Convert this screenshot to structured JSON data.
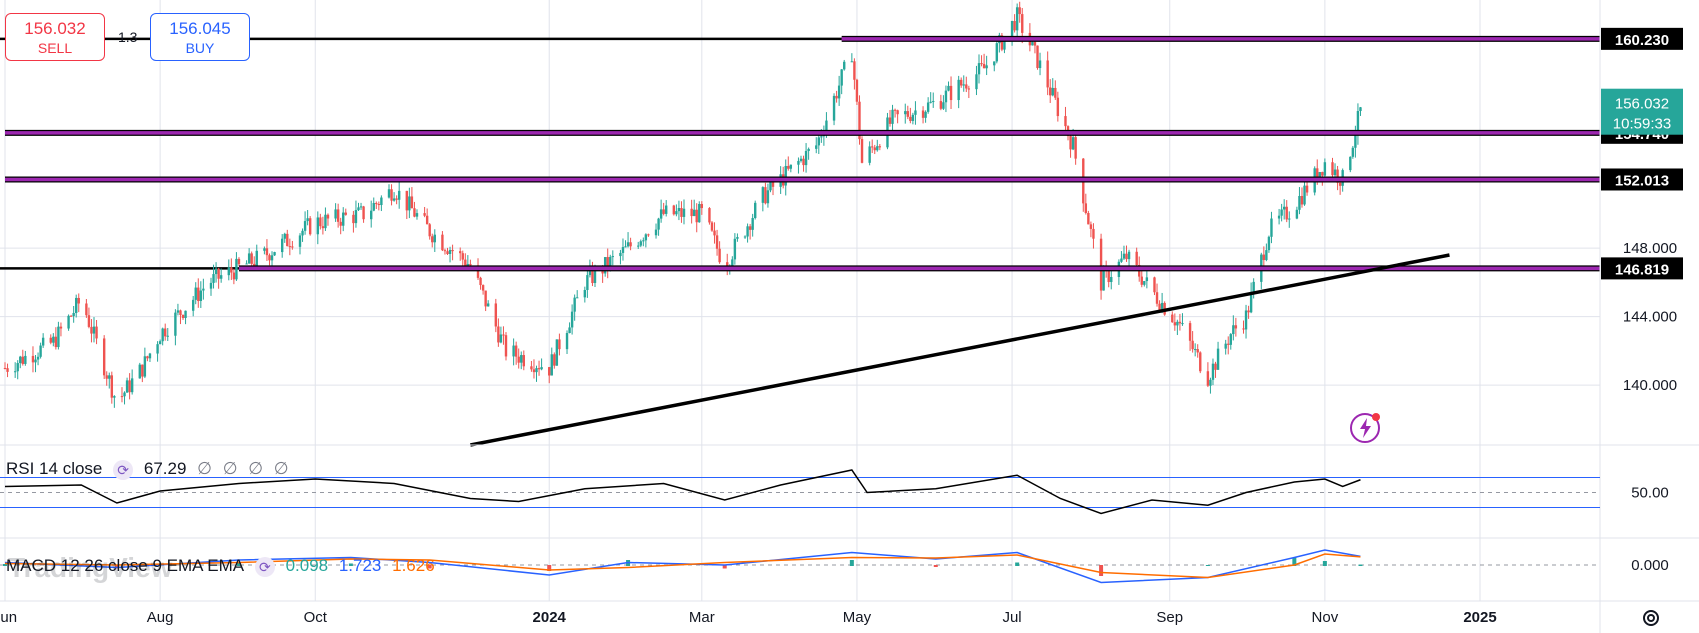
{
  "trade_panel": {
    "sell_price": "156.032",
    "sell_label": "SELL",
    "spread": "1.3",
    "buy_price": "156.045",
    "buy_label": "BUY"
  },
  "watermark": "TradingView",
  "chart_data": {
    "type": "candlestick",
    "x_tick_labels": [
      "Jun",
      "Aug",
      "Oct",
      "2024",
      "Mar",
      "May",
      "Jul",
      "Sep",
      "Nov",
      "2025"
    ],
    "y_tick_labels": [
      "140.000",
      "144.000",
      "148.000"
    ],
    "ylim": [
      136.5,
      162.5
    ],
    "grid": true,
    "price_series": [
      {
        "d": "2023-06-01",
        "c": 141.0
      },
      {
        "d": "2023-06-20",
        "c": 142.5
      },
      {
        "d": "2023-07-01",
        "c": 145.0
      },
      {
        "d": "2023-07-15",
        "c": 139.0
      },
      {
        "d": "2023-07-25",
        "c": 141.0
      },
      {
        "d": "2023-08-01",
        "c": 143.0
      },
      {
        "d": "2023-08-20",
        "c": 146.0
      },
      {
        "d": "2023-09-10",
        "c": 147.5
      },
      {
        "d": "2023-10-01",
        "c": 149.5
      },
      {
        "d": "2023-10-20",
        "c": 150.0
      },
      {
        "d": "2023-11-01",
        "c": 151.5
      },
      {
        "d": "2023-11-15",
        "c": 149.0
      },
      {
        "d": "2023-12-01",
        "c": 147.0
      },
      {
        "d": "2023-12-15",
        "c": 142.0
      },
      {
        "d": "2024-01-01",
        "c": 141.0
      },
      {
        "d": "2024-01-15",
        "c": 146.0
      },
      {
        "d": "2024-02-01",
        "c": 148.0
      },
      {
        "d": "2024-02-15",
        "c": 150.0
      },
      {
        "d": "2024-03-01",
        "c": 150.0
      },
      {
        "d": "2024-03-10",
        "c": 147.0
      },
      {
        "d": "2024-03-25",
        "c": 151.0
      },
      {
        "d": "2024-04-15",
        "c": 154.0
      },
      {
        "d": "2024-04-29",
        "c": 159.5
      },
      {
        "d": "2024-05-03",
        "c": 153.0
      },
      {
        "d": "2024-05-15",
        "c": 155.5
      },
      {
        "d": "2024-06-01",
        "c": 156.5
      },
      {
        "d": "2024-06-20",
        "c": 158.5
      },
      {
        "d": "2024-07-03",
        "c": 161.5
      },
      {
        "d": "2024-07-11",
        "c": 159.0
      },
      {
        "d": "2024-07-25",
        "c": 154.0
      },
      {
        "d": "2024-08-05",
        "c": 146.0
      },
      {
        "d": "2024-08-15",
        "c": 147.5
      },
      {
        "d": "2024-08-25",
        "c": 145.5
      },
      {
        "d": "2024-09-05",
        "c": 143.5
      },
      {
        "d": "2024-09-16",
        "c": 140.5
      },
      {
        "d": "2024-09-25",
        "c": 143.0
      },
      {
        "d": "2024-10-01",
        "c": 144.0
      },
      {
        "d": "2024-10-10",
        "c": 149.0
      },
      {
        "d": "2024-10-20",
        "c": 150.5
      },
      {
        "d": "2024-11-01",
        "c": 153.0
      },
      {
        "d": "2024-11-08",
        "c": 152.0
      },
      {
        "d": "2024-11-15",
        "c": 156.0
      }
    ],
    "horizontal_levels": [
      {
        "label": "160.230",
        "value": 160.23,
        "color": "#9c27b0"
      },
      {
        "label": "154.740",
        "value": 154.74,
        "color": "#9c27b0"
      },
      {
        "label": "152.013",
        "value": 152.013,
        "color": "#9c27b0"
      },
      {
        "label": "146.819",
        "value": 146.819,
        "color": "#9c27b0"
      }
    ],
    "trendline": {
      "start": {
        "d": "2023-12-01",
        "v": 136.5
      },
      "end": {
        "d": "2024-12-20",
        "v": 147.6
      }
    },
    "current_price": {
      "label": "156.032",
      "countdown": "10:59:33",
      "color": "#26a69a"
    },
    "rsi": {
      "legend_name": "RSI 14 close",
      "legend_value": "67.29",
      "legend_extras": [
        "∅",
        "∅",
        "∅",
        "∅"
      ],
      "tick_label": "50.00",
      "upper_band": 70,
      "lower_band": 30,
      "series": [
        {
          "d": "2023-06-01",
          "v": 58
        },
        {
          "d": "2023-07-01",
          "v": 60
        },
        {
          "d": "2023-07-15",
          "v": 36
        },
        {
          "d": "2023-08-01",
          "v": 52
        },
        {
          "d": "2023-09-01",
          "v": 62
        },
        {
          "d": "2023-10-01",
          "v": 68
        },
        {
          "d": "2023-11-01",
          "v": 62
        },
        {
          "d": "2023-12-01",
          "v": 42
        },
        {
          "d": "2023-12-20",
          "v": 38
        },
        {
          "d": "2024-01-15",
          "v": 55
        },
        {
          "d": "2024-02-15",
          "v": 62
        },
        {
          "d": "2024-03-10",
          "v": 40
        },
        {
          "d": "2024-04-01",
          "v": 60
        },
        {
          "d": "2024-04-29",
          "v": 80
        },
        {
          "d": "2024-05-05",
          "v": 50
        },
        {
          "d": "2024-06-01",
          "v": 55
        },
        {
          "d": "2024-07-03",
          "v": 73
        },
        {
          "d": "2024-07-20",
          "v": 42
        },
        {
          "d": "2024-08-05",
          "v": 22
        },
        {
          "d": "2024-08-25",
          "v": 40
        },
        {
          "d": "2024-09-16",
          "v": 33
        },
        {
          "d": "2024-10-01",
          "v": 50
        },
        {
          "d": "2024-10-20",
          "v": 64
        },
        {
          "d": "2024-11-01",
          "v": 68
        },
        {
          "d": "2024-11-08",
          "v": 58
        },
        {
          "d": "2024-11-15",
          "v": 67
        }
      ]
    },
    "macd": {
      "legend_name": "MACD 12 26 close 9 EMA EMA",
      "hist_value": "0.098",
      "macd_value": "1.723",
      "signal_value": "1.626",
      "hist_color": "#26a69a",
      "macd_color": "#2962ff",
      "signal_color": "#ff6d00",
      "tick_label": "0.000",
      "series": [
        {
          "d": "2023-06-01",
          "m": 0.5,
          "s": 0.3
        },
        {
          "d": "2023-07-15",
          "m": -0.5,
          "s": 0.0
        },
        {
          "d": "2023-09-01",
          "m": 1.0,
          "s": 0.5
        },
        {
          "d": "2023-10-15",
          "m": 1.5,
          "s": 1.2
        },
        {
          "d": "2023-11-15",
          "m": 0.5,
          "s": 1.0
        },
        {
          "d": "2024-01-01",
          "m": -2.0,
          "s": -1.0
        },
        {
          "d": "2024-02-01",
          "m": 0.5,
          "s": -0.5
        },
        {
          "d": "2024-03-10",
          "m": 0.0,
          "s": 0.5
        },
        {
          "d": "2024-04-29",
          "m": 2.5,
          "s": 1.5
        },
        {
          "d": "2024-06-01",
          "m": 1.2,
          "s": 1.4
        },
        {
          "d": "2024-07-03",
          "m": 2.5,
          "s": 2.0
        },
        {
          "d": "2024-08-05",
          "m": -3.5,
          "s": -1.5
        },
        {
          "d": "2024-09-16",
          "m": -2.5,
          "s": -2.5
        },
        {
          "d": "2024-10-20",
          "m": 1.5,
          "s": 0.0
        },
        {
          "d": "2024-11-01",
          "m": 3.0,
          "s": 2.2
        },
        {
          "d": "2024-11-15",
          "m": 1.723,
          "s": 1.626
        }
      ]
    }
  }
}
